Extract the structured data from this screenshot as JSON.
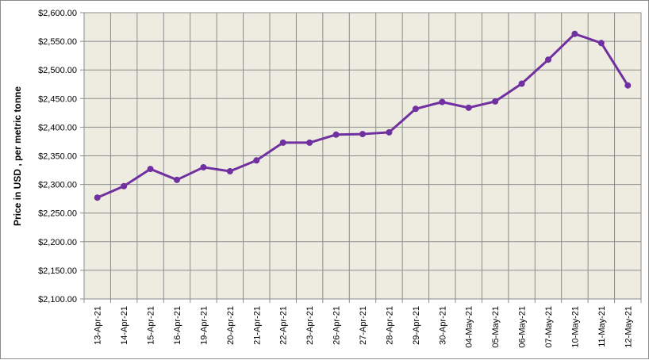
{
  "chart_data": {
    "type": "line",
    "title": "",
    "xlabel": "",
    "ylabel": "Price in USD , per metric tonne",
    "ylim": [
      2100,
      2600
    ],
    "y_ticks": [
      2100,
      2150,
      2200,
      2250,
      2300,
      2350,
      2400,
      2450,
      2500,
      2550,
      2600
    ],
    "y_tick_labels": [
      "$2,100.00",
      "$2,150.00",
      "$2,200.00",
      "$2,250.00",
      "$2,300.00",
      "$2,350.00",
      "$2,400.00",
      "$2,450.00",
      "$2,500.00",
      "$2,550.00",
      "$2,600.00"
    ],
    "grid": true,
    "legend": "none",
    "categories": [
      "13-Apr-21",
      "14-Apr-21",
      "15-Apr-21",
      "16-Apr-21",
      "19-Apr-21",
      "20-Apr-21",
      "21-Apr-21",
      "22-Apr-21",
      "23-Apr-21",
      "26-Apr-21",
      "27-Apr-21",
      "28-Apr-21",
      "29-Apr-21",
      "30-Apr-21",
      "04-May-21",
      "05-May-21",
      "06-May-21",
      "07-May-21",
      "10-May-21",
      "11-May-21",
      "12-May-21"
    ],
    "series": [
      {
        "values": [
          2277,
          2297,
          2327,
          2308,
          2330,
          2323,
          2342,
          2373,
          2373,
          2387,
          2388,
          2391,
          2432,
          2444,
          2434,
          2445,
          2476,
          2518,
          2563,
          2547,
          2473
        ]
      }
    ],
    "colors": {
      "line": "#7030a0",
      "plot_background": "#eeece1",
      "grid": "#8c8c8c"
    }
  }
}
